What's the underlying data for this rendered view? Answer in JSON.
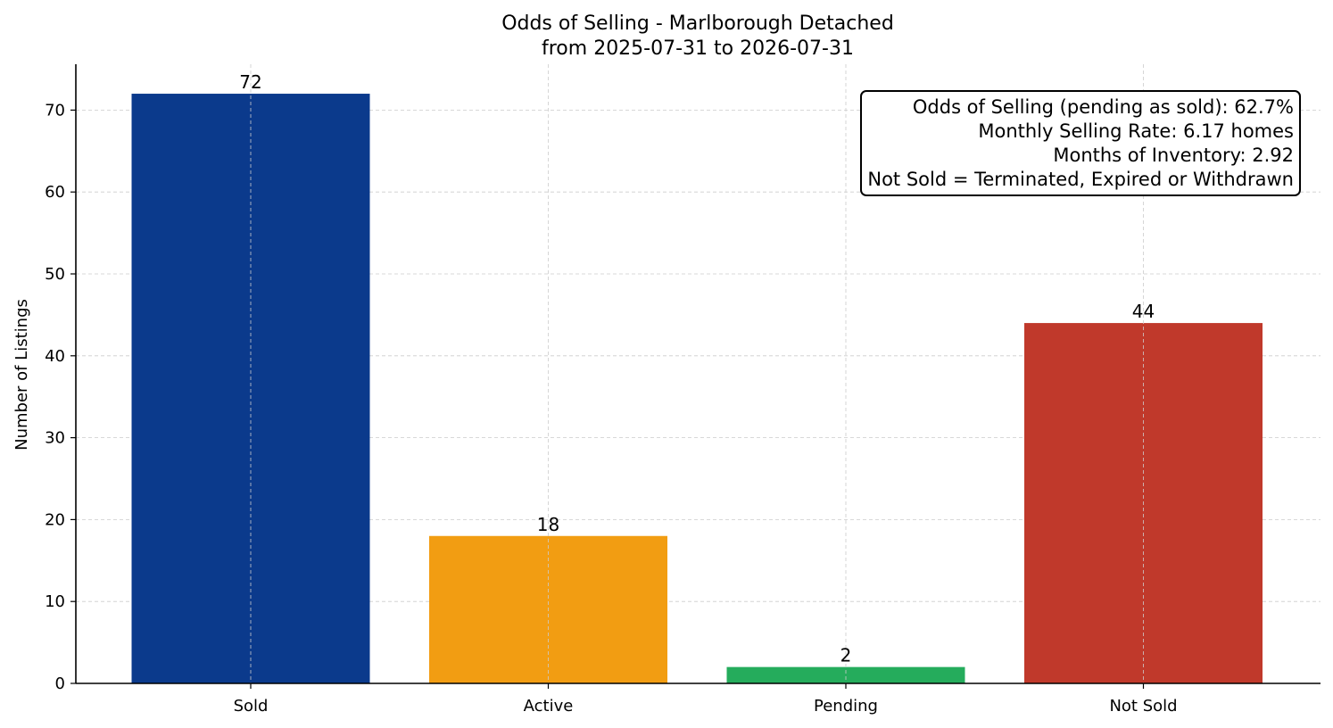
{
  "chart_data": {
    "type": "bar",
    "title": "Odds of Selling - Marlborough Detached",
    "subtitle": "from 2025-07-31 to 2026-07-31",
    "categories": [
      "Sold",
      "Active",
      "Pending",
      "Not Sold"
    ],
    "values": [
      72,
      18,
      2,
      44
    ],
    "colors": [
      "#0b3a8c",
      "#f29d12",
      "#25ac5c",
      "#c0392b"
    ],
    "xlabel": "",
    "ylabel": "Number of Listings",
    "ylim": [
      0,
      75.6
    ],
    "yticks": [
      0,
      10,
      20,
      30,
      40,
      50,
      60,
      70
    ],
    "grid": true,
    "annotation": {
      "placement": "top-right",
      "lines": [
        "Odds of Selling (pending as sold): 62.7%",
        "Monthly Selling Rate: 6.17 homes",
        "Months of Inventory: 2.92",
        "Not Sold = Terminated, Expired or Withdrawn"
      ]
    }
  }
}
